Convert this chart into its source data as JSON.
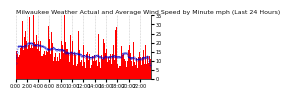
{
  "title": "Milwaukee Weather Actual and Average Wind Speed by Minute mph (Last 24 Hours)",
  "n_points": 1440,
  "ylim": [
    0,
    35
  ],
  "yticks": [
    0,
    5,
    10,
    15,
    20,
    25,
    30,
    35
  ],
  "bg_color": "#ffffff",
  "bar_color": "#ff0000",
  "avg_color": "#0000cc",
  "grid_color": "#cccccc",
  "title_fontsize": 4.5,
  "tick_fontsize": 3.5,
  "seed": 42
}
